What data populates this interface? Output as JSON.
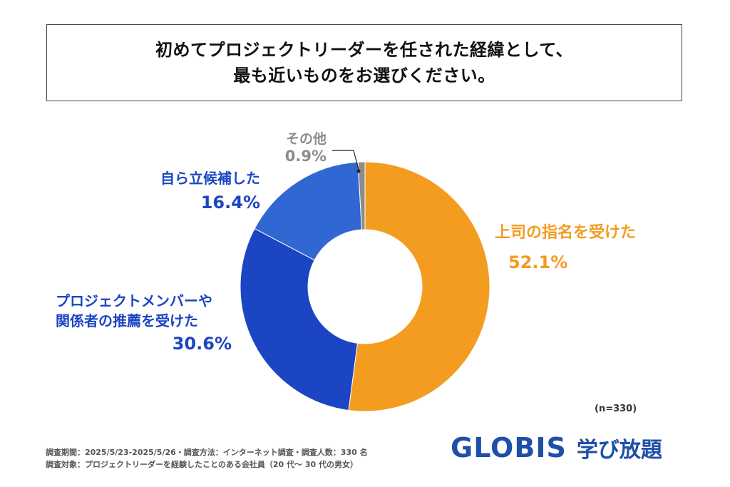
{
  "title": {
    "line1": "初めてプロジェクトリーダーを任された経緯として、",
    "line2": "最も近いものをお選びください。"
  },
  "chart_data": {
    "type": "pie",
    "donut": true,
    "slices": [
      {
        "label": "上司の指名を受けた",
        "value": 52.1,
        "value_label": "52.1%",
        "color": "#f39c1f"
      },
      {
        "label": "プロジェクトメンバーや\n関係者の推薦を受けた",
        "value": 30.6,
        "value_label": "30.6%",
        "color": "#1c45c4"
      },
      {
        "label": "自ら立候補した",
        "value": 16.4,
        "value_label": "16.4%",
        "color": "#3167d2"
      },
      {
        "label": "その他",
        "value": 0.9,
        "value_label": "0.9%",
        "color": "#8c8c8c"
      }
    ],
    "label_colors": {
      "orange": "#f39c1f",
      "blue": "#1c45c4",
      "gray": "#8c8c8c"
    }
  },
  "n_note": "(n=330)",
  "footer": {
    "line1": "調査期間：2025/5/23-2025/5/26・調査方法：インターネット調査・調査人数：330 名",
    "line2": "調査対象：プロジェクトリーダーを経験したことのある会社員（20 代～ 30 代の男女）"
  },
  "logo": {
    "main": "GLOBIS",
    "sub": "学び放題"
  }
}
